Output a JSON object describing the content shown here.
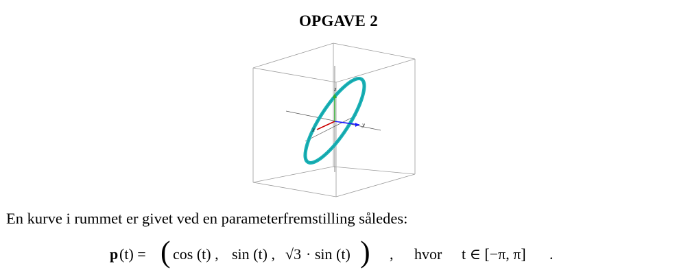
{
  "title": "OPGAVE 2",
  "figure": {
    "axis_labels": {
      "x": "x",
      "y": "y",
      "z": "z"
    },
    "colors": {
      "curve": "#1ab3b8",
      "x_axis": "#cc0000",
      "y_axis": "#1a1aff",
      "z_axis": "#33aa33",
      "box": "#9a9a9a"
    }
  },
  "intro_text": "En kurve i rummet er givet ved en parameterfremstilling således:",
  "formula": {
    "lhs_p": "p",
    "lhs_arg": "(t) =",
    "cos": "cos (t) ,",
    "sin": "sin (t) ,",
    "sqrt": "√3",
    "sin2": "· sin (t)",
    "comma": ",",
    "hvor": "hvor",
    "domain": "t ∈ [−π, π]",
    "period": "."
  }
}
